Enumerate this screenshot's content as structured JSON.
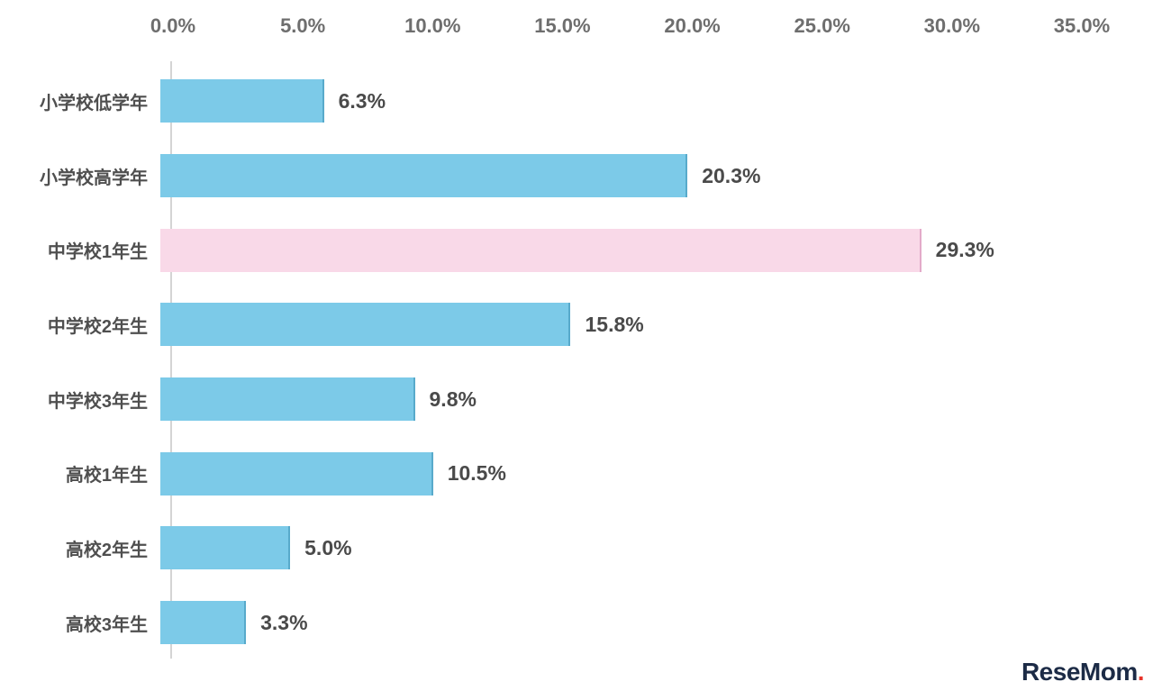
{
  "page": {
    "background": "#ffffff"
  },
  "chart_data": {
    "type": "bar",
    "orientation": "horizontal",
    "title": "",
    "xlabel": "",
    "ylabel": "",
    "categories": [
      "小学校低学年",
      "小学校高学年",
      "中学校1年生",
      "中学校2年生",
      "中学校3年生",
      "高校1年生",
      "高校2年生",
      "高校3年生"
    ],
    "values": [
      6.3,
      20.3,
      29.3,
      15.8,
      9.8,
      10.5,
      5.0,
      3.3
    ],
    "value_labels": [
      "6.3%",
      "20.3%",
      "29.3%",
      "15.8%",
      "9.8%",
      "10.5%",
      "5.0%",
      "3.3%"
    ],
    "highlight_index": 2,
    "bar_color": "#7ccae8",
    "highlight_color": "#f9d9e8",
    "label_color": "#4f4f4f",
    "value_color": "#4a4a4a",
    "axis": {
      "position": "top",
      "tick_labels": [
        "0.0%",
        "5.0%",
        "10.0%",
        "15.0%",
        "20.0%",
        "25.0%",
        "30.0%",
        "35.0%"
      ],
      "tick_values": [
        0,
        5,
        10,
        15,
        20,
        25,
        30,
        35
      ],
      "xlim": [
        0,
        35
      ],
      "tick_color": "#6e6e6e"
    },
    "grid": false,
    "legend": false
  },
  "watermark": {
    "text": "ReseMom",
    "dot": "."
  }
}
